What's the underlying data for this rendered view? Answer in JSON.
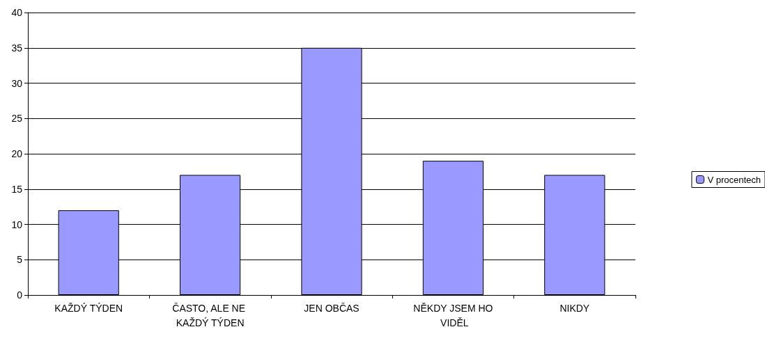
{
  "chart_data": {
    "type": "bar",
    "categories": [
      "KAŽDÝ TÝDEN",
      "ČASTO, ALE NE KAŽDÝ TÝDEN",
      "JEN OBČAS",
      "NĚKDY JSEM HO VIDĚL",
      "NIKDY"
    ],
    "series": [
      {
        "name": "V procentech",
        "color": "#9999ff",
        "values": [
          12,
          17,
          35,
          19,
          17
        ]
      }
    ],
    "ylim": [
      0,
      40
    ],
    "yticks": [
      0,
      5,
      10,
      15,
      20,
      25,
      30,
      35,
      40
    ],
    "grid": "y",
    "legend": "right"
  }
}
